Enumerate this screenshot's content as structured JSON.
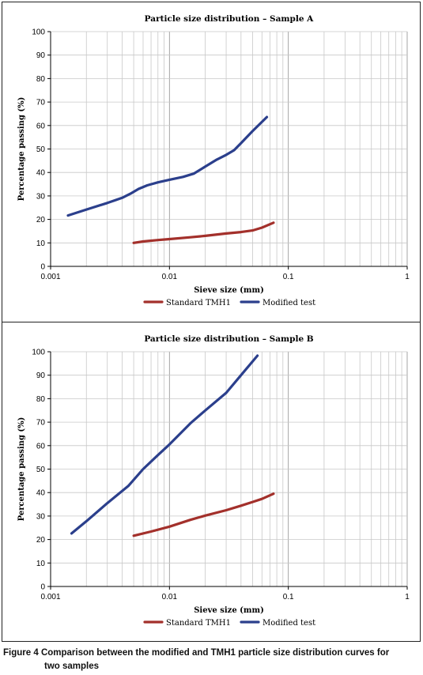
{
  "figure": {
    "caption_label": "Figure 4",
    "caption_line1": "Comparison between the modified and TMH1 particle size distribution curves for",
    "caption_line2": "two samples"
  },
  "colors": {
    "standard": "#a3302b",
    "modified": "#2b3f8c",
    "grid": "#c8c8c8"
  },
  "chart_data": [
    {
      "type": "line",
      "title": "Particle size distribution – Sample A",
      "xlabel": "Sieve size (mm)",
      "ylabel": "Percentage passing (%)",
      "x_scale": "log",
      "xlim": [
        0.001,
        1
      ],
      "ylim": [
        0,
        100
      ],
      "x_ticks": [
        "0.001",
        "0.01",
        "0.1",
        "1"
      ],
      "y_ticks": [
        "0",
        "10",
        "20",
        "30",
        "40",
        "50",
        "60",
        "70",
        "80",
        "90",
        "100"
      ],
      "grid": true,
      "legend_position": "bottom",
      "series": [
        {
          "name": "Standard TMH1",
          "x": [
            0.005,
            0.006,
            0.008,
            0.01,
            0.015,
            0.02,
            0.03,
            0.04,
            0.05,
            0.06,
            0.075
          ],
          "y": [
            10.0,
            10.6,
            11.2,
            11.6,
            12.4,
            13.0,
            14.0,
            14.6,
            15.3,
            16.5,
            18.6
          ]
        },
        {
          "name": "Modified test",
          "x": [
            0.0014,
            0.002,
            0.003,
            0.004,
            0.0048,
            0.0055,
            0.0065,
            0.008,
            0.01,
            0.013,
            0.016,
            0.02,
            0.025,
            0.03,
            0.035,
            0.04,
            0.05,
            0.066
          ],
          "y": [
            21.7,
            24.2,
            27.0,
            29.2,
            31.2,
            33.0,
            34.5,
            35.8,
            36.9,
            38.1,
            39.5,
            42.5,
            45.5,
            47.5,
            49.5,
            52.5,
            57.6,
            63.6
          ]
        }
      ]
    },
    {
      "type": "line",
      "title": "Particle size distribution – Sample B",
      "xlabel": "Sieve size (mm)",
      "ylabel": "Percentage passing (%)",
      "x_scale": "log",
      "xlim": [
        0.001,
        1
      ],
      "ylim": [
        0,
        100
      ],
      "x_ticks": [
        "0.001",
        "0.01",
        "0.1",
        "1"
      ],
      "y_ticks": [
        "0",
        "10",
        "20",
        "30",
        "40",
        "50",
        "60",
        "70",
        "80",
        "90",
        "100"
      ],
      "grid": true,
      "legend_position": "bottom",
      "series": [
        {
          "name": "Standard TMH1",
          "x": [
            0.005,
            0.007,
            0.01,
            0.015,
            0.02,
            0.03,
            0.04,
            0.05,
            0.06,
            0.075
          ],
          "y": [
            21.6,
            23.4,
            25.5,
            28.4,
            30.2,
            32.5,
            34.4,
            36.0,
            37.3,
            39.5
          ]
        },
        {
          "name": "Modified test",
          "x": [
            0.0015,
            0.002,
            0.003,
            0.0045,
            0.006,
            0.008,
            0.01,
            0.015,
            0.02,
            0.03,
            0.04,
            0.055
          ],
          "y": [
            22.6,
            27.8,
            35.5,
            42.8,
            50.0,
            56.0,
            60.5,
            69.5,
            75.0,
            82.5,
            90.0,
            98.3
          ]
        }
      ]
    }
  ]
}
